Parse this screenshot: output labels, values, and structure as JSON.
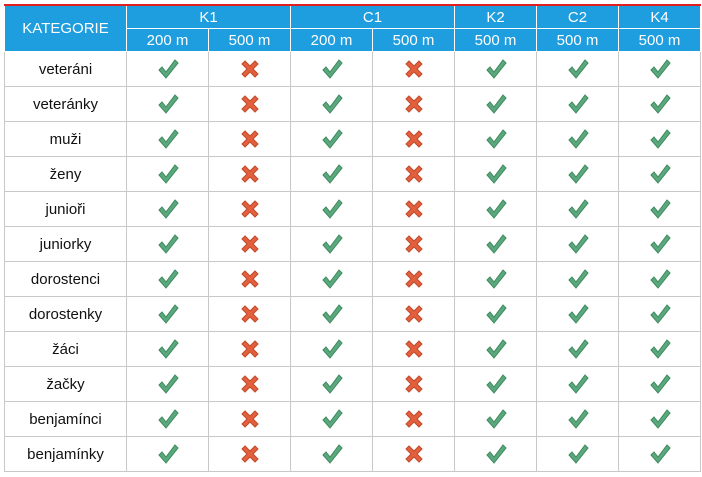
{
  "table": {
    "header": {
      "category": "KATEGORIE",
      "groups": [
        {
          "name": "K1",
          "distances": [
            "200 m",
            "500 m"
          ]
        },
        {
          "name": "C1",
          "distances": [
            "200 m",
            "500 m"
          ]
        },
        {
          "name": "K2",
          "distances": [
            "500 m"
          ]
        },
        {
          "name": "C2",
          "distances": [
            "500 m"
          ]
        },
        {
          "name": "K4",
          "distances": [
            "500 m"
          ]
        }
      ]
    },
    "rows": [
      {
        "category": "veteráni",
        "available": [
          true,
          false,
          true,
          false,
          true,
          true,
          true
        ]
      },
      {
        "category": "veteránky",
        "available": [
          true,
          false,
          true,
          false,
          true,
          true,
          true
        ]
      },
      {
        "category": "muži",
        "available": [
          true,
          false,
          true,
          false,
          true,
          true,
          true
        ]
      },
      {
        "category": "ženy",
        "available": [
          true,
          false,
          true,
          false,
          true,
          true,
          true
        ]
      },
      {
        "category": "junioři",
        "available": [
          true,
          false,
          true,
          false,
          true,
          true,
          true
        ]
      },
      {
        "category": "juniorky",
        "available": [
          true,
          false,
          true,
          false,
          true,
          true,
          true
        ]
      },
      {
        "category": "dorostenci",
        "available": [
          true,
          false,
          true,
          false,
          true,
          true,
          true
        ]
      },
      {
        "category": "dorostenky",
        "available": [
          true,
          false,
          true,
          false,
          true,
          true,
          true
        ]
      },
      {
        "category": "žáci",
        "available": [
          true,
          false,
          true,
          false,
          true,
          true,
          true
        ]
      },
      {
        "category": "žačky",
        "available": [
          true,
          false,
          true,
          false,
          true,
          true,
          true
        ]
      },
      {
        "category": "benjamínci",
        "available": [
          true,
          false,
          true,
          false,
          true,
          true,
          true
        ]
      },
      {
        "category": "benjamínky",
        "available": [
          true,
          false,
          true,
          false,
          true,
          true,
          true
        ]
      }
    ]
  }
}
